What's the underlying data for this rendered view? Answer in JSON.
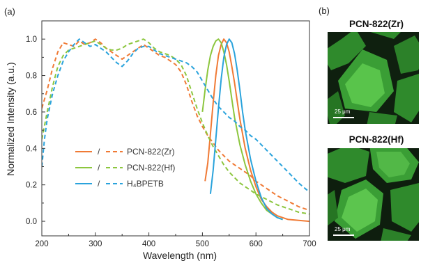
{
  "panel_a_label": "(a)",
  "panel_b_label": "(b)",
  "chart_data": {
    "type": "line",
    "xlabel": "Wavelength (nm)",
    "ylabel": "Normalized Intensity (a.u.)",
    "xlim": [
      200,
      700
    ],
    "ylim": [
      -0.08,
      1.1
    ],
    "xticks": [
      200,
      300,
      400,
      500,
      600,
      700
    ],
    "yticks": [
      0.0,
      0.2,
      0.4,
      0.6,
      0.8,
      1.0
    ],
    "xtick_labels": [
      "200",
      "300",
      "400",
      "500",
      "600",
      "700"
    ],
    "ytick_labels": [
      "0.0",
      "0.2",
      "0.4",
      "0.6",
      "0.8",
      "1.0"
    ],
    "grid": false,
    "legend_placement": "lower-left",
    "legend_separator": "/",
    "series": [
      {
        "name": "PCN-822(Zr)",
        "legend_index": 0,
        "kind": "excitation",
        "style": "dashed",
        "color": "#f07a35",
        "x": [
          200,
          210,
          220,
          230,
          240,
          250,
          260,
          270,
          280,
          290,
          300,
          310,
          320,
          330,
          340,
          350,
          360,
          370,
          380,
          390,
          400,
          410,
          420,
          430,
          440,
          450,
          460,
          470,
          480,
          490,
          500,
          510,
          520,
          530,
          540,
          550,
          560,
          570,
          580,
          590,
          600,
          620,
          640,
          660,
          680,
          700
        ],
        "y": [
          0.62,
          0.72,
          0.84,
          0.93,
          0.98,
          0.97,
          0.96,
          0.99,
          0.97,
          0.98,
          1.0,
          0.98,
          0.95,
          0.93,
          0.91,
          0.89,
          0.91,
          0.93,
          0.95,
          0.97,
          0.95,
          0.93,
          0.91,
          0.9,
          0.88,
          0.86,
          0.82,
          0.75,
          0.66,
          0.58,
          0.52,
          0.47,
          0.43,
          0.39,
          0.36,
          0.33,
          0.31,
          0.29,
          0.27,
          0.25,
          0.22,
          0.18,
          0.14,
          0.11,
          0.08,
          0.06
        ]
      },
      {
        "name": "",
        "legend_index": 0,
        "kind": "emission",
        "style": "solid",
        "color": "#f07a35",
        "x": [
          505,
          510,
          515,
          520,
          525,
          530,
          535,
          540,
          545,
          550,
          555,
          560,
          565,
          570,
          580,
          590,
          600,
          610,
          620,
          630,
          640,
          660,
          680,
          700
        ],
        "y": [
          0.22,
          0.32,
          0.48,
          0.65,
          0.8,
          0.91,
          0.97,
          1.0,
          0.98,
          0.93,
          0.85,
          0.76,
          0.66,
          0.56,
          0.4,
          0.28,
          0.19,
          0.12,
          0.08,
          0.05,
          0.03,
          0.01,
          0.005,
          0.0
        ]
      },
      {
        "name": "PCN-822(Hf)",
        "legend_index": 1,
        "kind": "excitation",
        "style": "dashed",
        "color": "#8cc63e",
        "x": [
          200,
          210,
          220,
          230,
          240,
          250,
          260,
          270,
          280,
          290,
          300,
          310,
          320,
          330,
          340,
          350,
          360,
          370,
          380,
          390,
          400,
          410,
          420,
          430,
          440,
          450,
          460,
          470,
          480,
          490,
          500,
          510,
          520,
          530,
          540,
          550,
          560,
          570,
          580,
          590,
          600,
          620,
          640,
          660,
          680,
          700
        ],
        "y": [
          0.45,
          0.6,
          0.74,
          0.85,
          0.91,
          0.94,
          0.95,
          0.96,
          0.97,
          0.98,
          0.99,
          0.97,
          0.95,
          0.94,
          0.94,
          0.95,
          0.97,
          0.98,
          0.99,
          1.0,
          0.98,
          0.95,
          0.93,
          0.92,
          0.91,
          0.89,
          0.86,
          0.8,
          0.71,
          0.62,
          0.54,
          0.47,
          0.41,
          0.36,
          0.31,
          0.27,
          0.24,
          0.21,
          0.19,
          0.17,
          0.15,
          0.12,
          0.09,
          0.07,
          0.05,
          0.04
        ]
      },
      {
        "name": "",
        "legend_index": 1,
        "kind": "emission",
        "style": "solid",
        "color": "#8cc63e",
        "x": [
          500,
          505,
          510,
          515,
          520,
          525,
          530,
          535,
          540,
          545,
          550,
          555,
          560,
          570,
          580,
          590,
          600,
          610,
          620,
          630,
          640,
          650
        ],
        "y": [
          0.6,
          0.72,
          0.83,
          0.91,
          0.96,
          0.99,
          1.0,
          0.98,
          0.93,
          0.86,
          0.77,
          0.67,
          0.57,
          0.42,
          0.31,
          0.22,
          0.15,
          0.1,
          0.06,
          0.04,
          0.02,
          0.01
        ]
      },
      {
        "name": "H₄BPETB",
        "legend_index": 2,
        "kind": "excitation",
        "style": "dashed",
        "color": "#2aa3dc",
        "x": [
          200,
          205,
          210,
          220,
          230,
          240,
          250,
          260,
          270,
          280,
          290,
          300,
          310,
          320,
          330,
          340,
          350,
          360,
          370,
          380,
          390,
          400,
          410,
          420,
          430,
          440,
          450,
          460,
          470,
          480,
          490,
          500,
          510,
          520,
          530,
          540,
          550,
          560,
          570,
          580,
          590,
          600,
          620,
          640,
          660,
          680,
          700
        ],
        "y": [
          0.3,
          0.45,
          0.56,
          0.7,
          0.8,
          0.88,
          0.93,
          0.97,
          1.0,
          0.98,
          0.96,
          0.97,
          0.95,
          0.93,
          0.9,
          0.87,
          0.85,
          0.88,
          0.92,
          0.95,
          0.96,
          0.96,
          0.94,
          0.92,
          0.91,
          0.9,
          0.89,
          0.88,
          0.87,
          0.85,
          0.82,
          0.77,
          0.72,
          0.67,
          0.63,
          0.6,
          0.57,
          0.55,
          0.52,
          0.5,
          0.47,
          0.45,
          0.39,
          0.33,
          0.27,
          0.21,
          0.16
        ]
      },
      {
        "name": "",
        "legend_index": 2,
        "kind": "emission",
        "style": "solid",
        "color": "#2aa3dc",
        "x": [
          515,
          520,
          525,
          530,
          535,
          540,
          545,
          550,
          555,
          560,
          565,
          570,
          575,
          580,
          590,
          600,
          610,
          620,
          630,
          640,
          650
        ],
        "y": [
          0.15,
          0.28,
          0.45,
          0.62,
          0.78,
          0.9,
          0.97,
          1.0,
          0.98,
          0.92,
          0.83,
          0.72,
          0.6,
          0.5,
          0.34,
          0.22,
          0.13,
          0.07,
          0.04,
          0.02,
          0.01
        ]
      }
    ]
  },
  "micrographs": [
    {
      "title": "PCN-822(Zr)",
      "scale_label": "25 μm"
    },
    {
      "title": "PCN-822(Hf)",
      "scale_label": "25 μm"
    }
  ]
}
